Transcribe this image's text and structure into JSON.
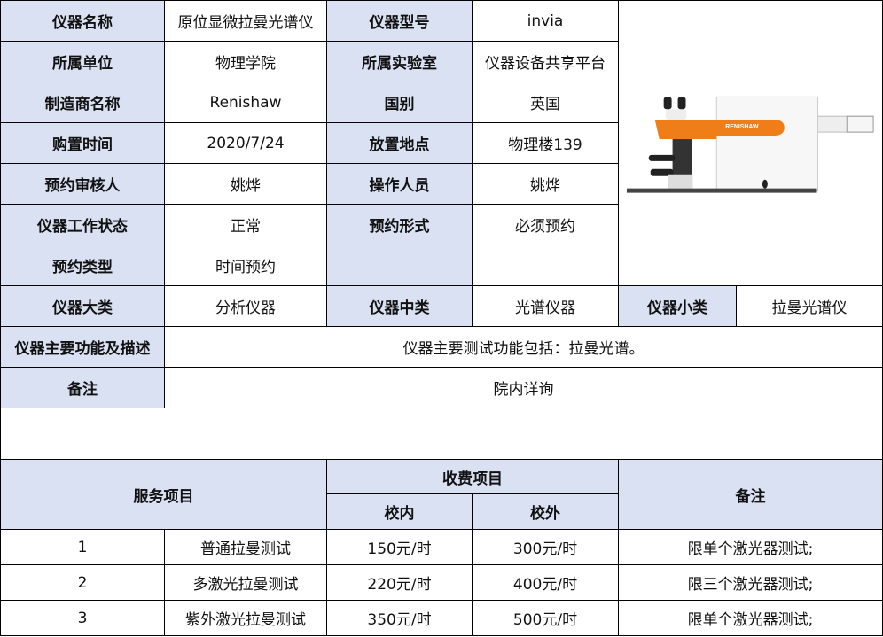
{
  "info": {
    "name_label": "仪器名称",
    "name": "原位显微拉曼光谱仪",
    "model_label": "仪器型号",
    "model": "invia",
    "unit_label": "所属单位",
    "unit": "物理学院",
    "lab_label": "所属实验室",
    "lab": "仪器设备共享平台",
    "maker_label": "制造商名称",
    "maker": "Renishaw",
    "country_label": "国别",
    "country": "英国",
    "date_label": "购置时间",
    "date": "2020/7/24",
    "location_label": "放置地点",
    "location": "物理楼139",
    "reviewer_label": "预约审核人",
    "reviewer": "姚烨",
    "operator_label": "操作人员",
    "operator": "姚烨",
    "status_label": "仪器工作状态",
    "status": "正常",
    "booking_form_label": "预约形式",
    "booking_form": "必须预约",
    "booking_type_label": "预约类型",
    "booking_type": "时间预约",
    "major_cat_label": "仪器大类",
    "major_cat": "分析仪器",
    "mid_cat_label": "仪器中类",
    "mid_cat": "光谱仪器",
    "minor_cat_label": "仪器小类",
    "minor_cat": "拉曼光谱仪",
    "desc_label": "仪器主要功能及描述",
    "desc": "仪器主要测试功能包括：拉曼光谱。",
    "note_label": "备注",
    "note": "院内详询",
    "photo_brand": "RENISHAW"
  },
  "fees": {
    "service_header": "服务项目",
    "fee_header": "收费项目",
    "internal_header": "校内",
    "external_header": "校外",
    "note_header": "备注",
    "rows": [
      {
        "no": "1",
        "item": "普通拉曼测试",
        "internal": "150元/时",
        "external": "300元/时",
        "note": "限单个激光器测试;"
      },
      {
        "no": "2",
        "item": "多激光拉曼测试",
        "internal": "220元/时",
        "external": "400元/时",
        "note": "限三个激光器测试;"
      },
      {
        "no": "3",
        "item": "紫外激光拉曼测试",
        "internal": "350元/时",
        "external": "500元/时",
        "note": "限单个激光器测试;"
      }
    ]
  }
}
